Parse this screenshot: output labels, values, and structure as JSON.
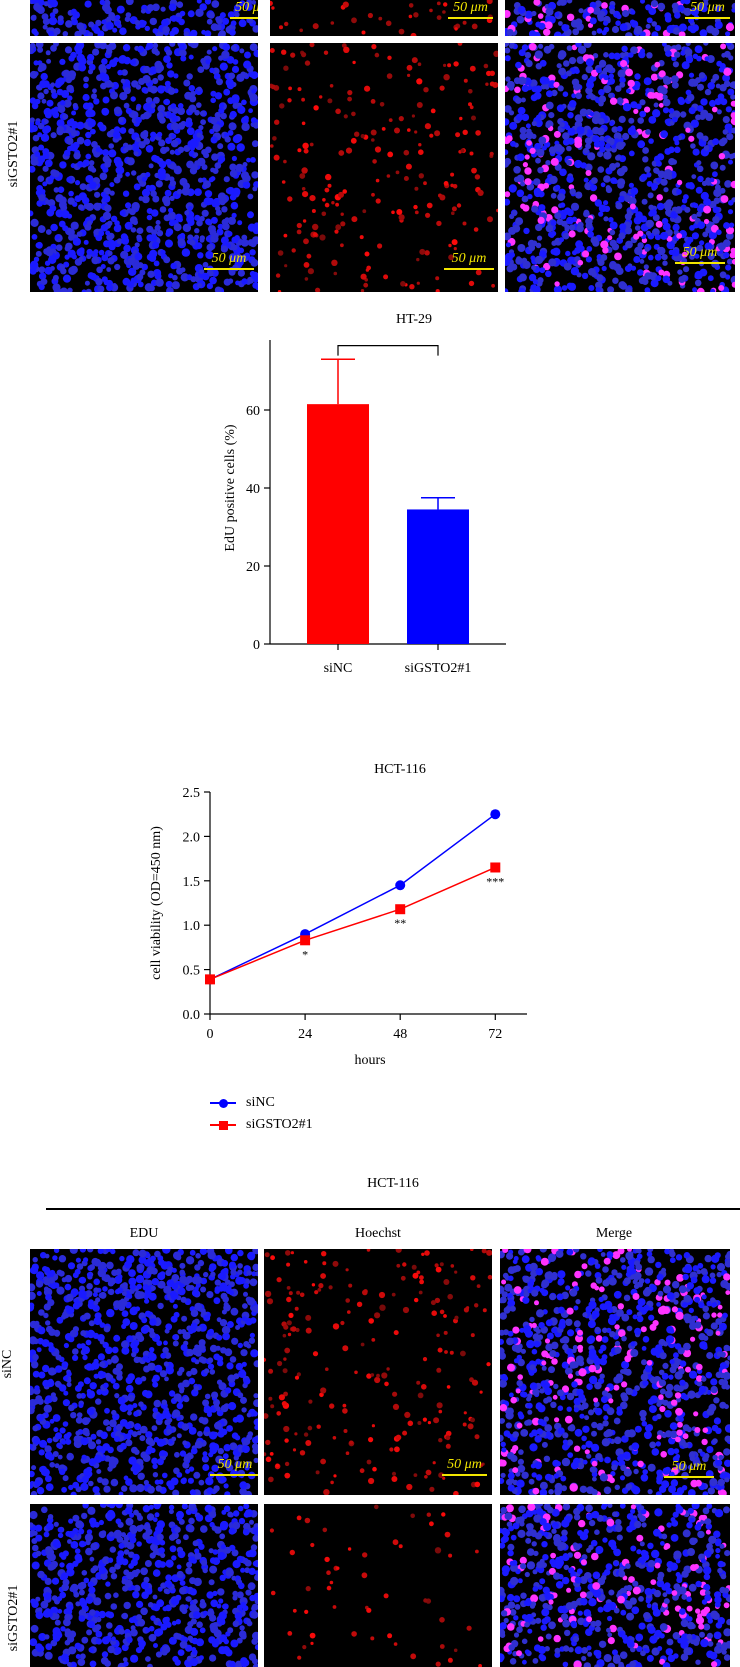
{
  "colors": {
    "edu": "#1a1aff",
    "hoechst": "#e01010",
    "merge": "#ff33ff",
    "scale": "#f2e600",
    "siNC": "#0000ff",
    "siGSTO2": "#ff0000"
  },
  "top_panel": {
    "row_label": "siGSTO2#1",
    "scale_label": "50 μm"
  },
  "edu_chart_title": "HT-29",
  "growth_chart_title": "HCT-116",
  "legend": [
    {
      "label": "siNC",
      "marker": "circle"
    },
    {
      "label": "siGSTO2#1",
      "marker": "square"
    }
  ],
  "bottom_panel": {
    "title": "HCT-116",
    "columns": [
      "EDU",
      "Hoechst",
      "Merge"
    ],
    "rows": [
      "siNC",
      "siGSTO2#1"
    ],
    "scale_label": "50 μm"
  },
  "chart_data": [
    {
      "type": "bar",
      "title": "HT-29",
      "ylabel": "EdU positive cells (%)",
      "xlabel": "",
      "categories": [
        "siNC",
        "siGSTO2#1"
      ],
      "values": [
        61.5,
        34.5
      ],
      "errors": [
        11.5,
        3
      ],
      "colors": [
        "#ff0000",
        "#0000ff"
      ],
      "ylim": [
        0,
        80
      ],
      "yticks": [
        0,
        20,
        40,
        60,
        80
      ],
      "annotation": "***"
    },
    {
      "type": "line",
      "title": "HCT-116",
      "xlabel": "hours",
      "ylabel": "cell viability (OD=450 nm)",
      "x": [
        0,
        24,
        48,
        72
      ],
      "xticks": [
        0,
        24,
        48,
        72
      ],
      "xlim": [
        0,
        80
      ],
      "ylim": [
        0,
        2.5
      ],
      "yticks": [
        "0.0",
        "0.5",
        "1.0",
        "1.5",
        "2.0",
        "2.5"
      ],
      "series": [
        {
          "name": "siNC",
          "values": [
            0.39,
            0.9,
            1.45,
            2.25
          ],
          "marker": "circle",
          "color": "#0000ff"
        },
        {
          "name": "siGSTO2#1",
          "values": [
            0.39,
            0.83,
            1.18,
            1.65
          ],
          "marker": "square",
          "color": "#ff0000"
        }
      ],
      "significance": [
        "",
        "*",
        "**",
        "***"
      ]
    }
  ]
}
